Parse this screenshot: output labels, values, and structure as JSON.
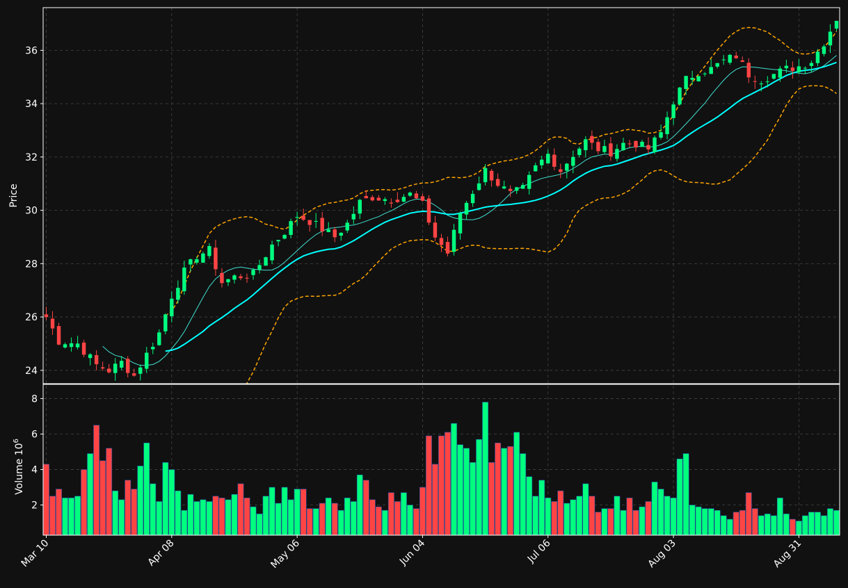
{
  "chart_data": {
    "type": "candlestick",
    "theme": {
      "background": "#111111",
      "up_color": "#00ff7f",
      "down_color": "#ff4444",
      "bollinger_color": "#ffa500",
      "ma_short_color": "#40e0d0",
      "ma_long_color": "#00ffff",
      "grid": true
    },
    "xlabels": [
      "Mar 10",
      "Apr 08",
      "May 06",
      "Jun 04",
      "Jul 06",
      "Aug 03",
      "Aug 31"
    ],
    "xlabel_index": [
      0,
      20,
      40,
      60,
      80,
      100,
      120
    ],
    "price_panel": {
      "ylabel": "Price",
      "ylim": [
        23.5,
        37.6
      ],
      "yticks": [
        24,
        26,
        28,
        30,
        32,
        34,
        36
      ]
    },
    "volume_panel": {
      "ylabel": "Volume",
      "yunit": "10^6",
      "ylim": [
        0.3,
        8.8
      ],
      "yticks": [
        2,
        4,
        6,
        8
      ]
    },
    "anchors": [
      [
        0,
        26.0
      ],
      [
        2,
        25.1
      ],
      [
        5,
        25.0
      ],
      [
        8,
        24.2
      ],
      [
        10,
        24.0
      ],
      [
        12,
        24.3
      ],
      [
        14,
        23.8
      ],
      [
        16,
        24.6
      ],
      [
        18,
        25.4
      ],
      [
        20,
        26.8
      ],
      [
        22,
        27.7
      ],
      [
        24,
        28.3
      ],
      [
        26,
        28.5
      ],
      [
        28,
        27.3
      ],
      [
        30,
        27.5
      ],
      [
        33,
        27.6
      ],
      [
        36,
        28.7
      ],
      [
        38,
        29.2
      ],
      [
        40,
        29.8
      ],
      [
        42,
        29.6
      ],
      [
        44,
        29.3
      ],
      [
        46,
        29.0
      ],
      [
        48,
        29.5
      ],
      [
        50,
        30.3
      ],
      [
        52,
        30.5
      ],
      [
        55,
        30.4
      ],
      [
        58,
        30.6
      ],
      [
        60,
        30.2
      ],
      [
        62,
        29.0
      ],
      [
        64,
        28.4
      ],
      [
        66,
        29.9
      ],
      [
        68,
        30.7
      ],
      [
        70,
        31.5
      ],
      [
        72,
        31.0
      ],
      [
        74,
        30.6
      ],
      [
        76,
        30.8
      ],
      [
        78,
        31.6
      ],
      [
        80,
        32.1
      ],
      [
        82,
        31.5
      ],
      [
        84,
        32.1
      ],
      [
        86,
        32.6
      ],
      [
        88,
        32.3
      ],
      [
        90,
        32.2
      ],
      [
        92,
        32.5
      ],
      [
        94,
        32.5
      ],
      [
        96,
        32.3
      ],
      [
        98,
        32.9
      ],
      [
        100,
        34.1
      ],
      [
        102,
        34.9
      ],
      [
        104,
        35.2
      ],
      [
        106,
        35.3
      ],
      [
        108,
        35.6
      ],
      [
        110,
        35.8
      ],
      [
        112,
        35.1
      ],
      [
        114,
        34.9
      ],
      [
        116,
        35.1
      ],
      [
        118,
        35.3
      ],
      [
        120,
        35.4
      ],
      [
        122,
        35.6
      ],
      [
        124,
        36.3
      ],
      [
        126,
        37.2
      ],
      [
        127,
        36.6
      ]
    ],
    "volume_values": [
      4.3,
      2.5,
      2.9,
      2.4,
      2.4,
      2.5,
      4.0,
      4.9,
      6.5,
      4.5,
      5.2,
      2.8,
      2.3,
      3.4,
      2.9,
      4.2,
      5.5,
      3.2,
      2.2,
      4.4,
      4.0,
      2.8,
      1.7,
      2.6,
      2.2,
      2.3,
      2.2,
      2.5,
      2.4,
      2.3,
      2.6,
      3.2,
      2.4,
      1.9,
      1.5,
      2.5,
      3.0,
      2.1,
      3.0,
      2.3,
      2.9,
      2.9,
      1.8,
      1.8,
      2.1,
      2.4,
      2.1,
      1.7,
      2.4,
      2.2,
      3.7,
      3.4,
      2.3,
      1.9,
      1.7,
      2.7,
      2.2,
      2.7,
      2.0,
      1.8,
      3.0,
      5.9,
      4.3,
      5.9,
      6.1,
      6.6,
      5.4,
      5.2,
      4.4,
      5.7,
      7.8,
      4.4,
      5.5,
      5.2,
      5.3,
      6.1,
      4.9,
      3.6,
      2.5,
      3.4,
      2.4,
      2.2,
      2.8,
      2.1,
      2.3,
      2.5,
      3.2,
      2.5,
      1.6,
      1.8,
      1.8,
      2.5,
      1.7,
      2.4,
      1.7,
      1.9,
      2.2,
      3.3,
      2.9,
      2.5,
      2.4,
      4.6,
      4.9,
      2.0,
      1.9,
      1.8,
      1.8,
      1.7,
      1.4,
      1.2,
      1.6,
      1.7,
      2.7,
      1.8,
      1.4,
      1.5,
      1.4,
      2.4,
      1.5,
      1.2,
      1.1,
      1.4,
      1.6,
      1.6,
      1.4,
      1.8,
      1.7
    ]
  }
}
